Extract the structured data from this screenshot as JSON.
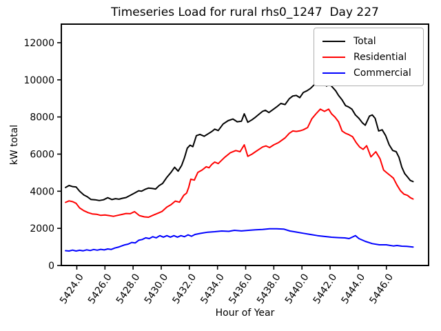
{
  "figure": {
    "title": "Timeseries Load for rural rhs0_1247  Day 227"
  },
  "chart_data": {
    "type": "line",
    "title": "Timeseries Load for rural rhs0_1247  Day 227",
    "xlabel": "Hour of Year",
    "ylabel": "kW total",
    "xlim": [
      5422.9,
      5449.0
    ],
    "ylim": [
      0,
      13000
    ],
    "xticks": [
      5424,
      5426,
      5428,
      5430,
      5432,
      5434,
      5436,
      5438,
      5440,
      5442,
      5444,
      5446
    ],
    "xtick_labels": [
      "5424.0",
      "5426.0",
      "5428.0",
      "5430.0",
      "5432.0",
      "5434.0",
      "5436.0",
      "5438.0",
      "5440.0",
      "5442.0",
      "5444.0",
      "5446.0"
    ],
    "yticks": [
      0,
      2000,
      4000,
      6000,
      8000,
      10000,
      12000
    ],
    "ytick_labels": [
      "0",
      "2000",
      "4000",
      "6000",
      "8000",
      "10000",
      "12000"
    ],
    "grid": false,
    "legend_position": "upper right",
    "series": [
      {
        "name": "Total",
        "color": "#000000",
        "x": [
          5423.2,
          5423.45,
          5423.7,
          5423.95,
          5424.2,
          5424.5,
          5424.75,
          5425.0,
          5425.3,
          5425.6,
          5425.9,
          5426.2,
          5426.5,
          5426.75,
          5427.0,
          5427.25,
          5427.5,
          5427.8,
          5428.1,
          5428.4,
          5428.6,
          5428.85,
          5429.1,
          5429.35,
          5429.6,
          5429.85,
          5430.1,
          5430.4,
          5430.7,
          5430.95,
          5431.2,
          5431.45,
          5431.65,
          5431.85,
          5432.05,
          5432.25,
          5432.5,
          5432.75,
          5433.05,
          5433.35,
          5433.6,
          5433.8,
          5434.05,
          5434.4,
          5434.75,
          5435.1,
          5435.4,
          5435.7,
          5435.9,
          5436.15,
          5436.45,
          5436.7,
          5436.95,
          5437.2,
          5437.4,
          5437.65,
          5437.95,
          5438.2,
          5438.5,
          5438.8,
          5439.1,
          5439.35,
          5439.6,
          5439.85,
          5440.1,
          5440.35,
          5440.6,
          5440.85,
          5441.1,
          5441.3,
          5441.55,
          5441.75,
          5441.95,
          5442.15,
          5442.4,
          5442.6,
          5442.85,
          5443.1,
          5443.3,
          5443.55,
          5443.8,
          5444.05,
          5444.3,
          5444.5,
          5444.8,
          5445.0,
          5445.2,
          5445.45,
          5445.7,
          5445.95,
          5446.2,
          5446.45,
          5446.7,
          5446.9,
          5447.1,
          5447.3,
          5447.5,
          5447.7,
          5447.9
        ],
        "y": [
          4200,
          4310,
          4250,
          4230,
          4000,
          3800,
          3700,
          3560,
          3540,
          3500,
          3540,
          3650,
          3550,
          3600,
          3570,
          3620,
          3660,
          3780,
          3900,
          4025,
          4000,
          4100,
          4170,
          4150,
          4120,
          4300,
          4420,
          4750,
          5020,
          5290,
          5080,
          5390,
          5800,
          6320,
          6480,
          6400,
          6995,
          7060,
          6960,
          7100,
          7220,
          7345,
          7270,
          7620,
          7800,
          7890,
          7740,
          7770,
          8170,
          7715,
          7850,
          7990,
          8150,
          8300,
          8360,
          8240,
          8400,
          8540,
          8730,
          8670,
          8980,
          9130,
          9160,
          9040,
          9320,
          9410,
          9535,
          9720,
          9900,
          9845,
          9950,
          9660,
          9780,
          9620,
          9410,
          9160,
          8920,
          8610,
          8545,
          8420,
          8110,
          7925,
          7680,
          7555,
          8050,
          8110,
          7925,
          7245,
          7310,
          6995,
          6500,
          6195,
          6130,
          5820,
          5290,
          4950,
          4770,
          4580,
          4520
        ]
      },
      {
        "name": "Residential",
        "color": "#ff0000",
        "x": [
          5423.2,
          5423.45,
          5423.7,
          5423.95,
          5424.2,
          5424.5,
          5424.8,
          5425.1,
          5425.4,
          5425.7,
          5426.0,
          5426.3,
          5426.6,
          5426.9,
          5427.2,
          5427.5,
          5427.8,
          5428.1,
          5428.45,
          5428.8,
          5429.1,
          5429.45,
          5429.75,
          5430.05,
          5430.4,
          5430.7,
          5431.0,
          5431.3,
          5431.6,
          5431.8,
          5431.95,
          5432.1,
          5432.35,
          5432.6,
          5432.9,
          5433.2,
          5433.4,
          5433.6,
          5433.8,
          5434.05,
          5434.5,
          5434.9,
          5435.3,
          5435.6,
          5435.9,
          5436.15,
          5436.45,
          5436.7,
          5437.0,
          5437.2,
          5437.45,
          5437.7,
          5438.0,
          5438.35,
          5438.8,
          5439.1,
          5439.35,
          5439.6,
          5439.85,
          5440.1,
          5440.4,
          5440.7,
          5441.0,
          5441.3,
          5441.6,
          5441.9,
          5442.1,
          5442.35,
          5442.6,
          5442.85,
          5443.1,
          5443.3,
          5443.6,
          5443.85,
          5444.1,
          5444.35,
          5444.6,
          5444.9,
          5445.25,
          5445.55,
          5445.8,
          5446.0,
          5446.3,
          5446.5,
          5446.75,
          5447.0,
          5447.25,
          5447.5,
          5447.7,
          5447.9
        ],
        "y": [
          3400,
          3480,
          3440,
          3350,
          3100,
          2950,
          2850,
          2780,
          2760,
          2700,
          2720,
          2690,
          2650,
          2700,
          2750,
          2800,
          2790,
          2900,
          2690,
          2620,
          2600,
          2720,
          2810,
          2910,
          3150,
          3280,
          3470,
          3410,
          3780,
          3900,
          4200,
          4650,
          4600,
          5015,
          5140,
          5320,
          5265,
          5450,
          5570,
          5490,
          5820,
          6070,
          6190,
          6130,
          6500,
          5880,
          6000,
          6130,
          6280,
          6380,
          6440,
          6350,
          6500,
          6625,
          6870,
          7120,
          7245,
          7220,
          7250,
          7310,
          7430,
          7900,
          8170,
          8420,
          8300,
          8420,
          8170,
          7990,
          7740,
          7245,
          7120,
          7060,
          6935,
          6625,
          6380,
          6254,
          6450,
          5850,
          6130,
          5750,
          5140,
          5015,
          4830,
          4705,
          4335,
          4025,
          3840,
          3777,
          3650,
          3580
        ]
      },
      {
        "name": "Commercial",
        "color": "#0000ff",
        "x": [
          5423.2,
          5423.45,
          5423.7,
          5423.95,
          5424.2,
          5424.45,
          5424.7,
          5424.95,
          5425.2,
          5425.45,
          5425.7,
          5425.95,
          5426.2,
          5426.45,
          5426.7,
          5427.0,
          5427.4,
          5427.65,
          5427.9,
          5428.15,
          5428.4,
          5428.65,
          5428.9,
          5429.15,
          5429.4,
          5429.65,
          5429.9,
          5430.15,
          5430.4,
          5430.65,
          5430.9,
          5431.15,
          5431.4,
          5431.65,
          5431.9,
          5432.15,
          5432.4,
          5432.8,
          5433.3,
          5433.8,
          5434.3,
          5434.8,
          5435.2,
          5435.7,
          5436.2,
          5436.7,
          5437.2,
          5437.7,
          5438.2,
          5438.7,
          5439.15,
          5439.6,
          5440.1,
          5440.6,
          5441.1,
          5441.6,
          5442.1,
          5442.6,
          5443.05,
          5443.35,
          5443.55,
          5443.8,
          5444.05,
          5444.5,
          5445.0,
          5445.5,
          5446.0,
          5446.5,
          5446.75,
          5447.1,
          5447.45,
          5447.9
        ],
        "y": [
          800,
          780,
          830,
          780,
          820,
          790,
          845,
          805,
          860,
          825,
          870,
          840,
          890,
          865,
          940,
          1000,
          1110,
          1150,
          1240,
          1215,
          1360,
          1400,
          1490,
          1450,
          1550,
          1490,
          1610,
          1525,
          1610,
          1525,
          1610,
          1525,
          1610,
          1550,
          1650,
          1575,
          1670,
          1730,
          1795,
          1820,
          1857,
          1840,
          1894,
          1860,
          1894,
          1920,
          1943,
          1975,
          1980,
          1960,
          1857,
          1800,
          1734,
          1670,
          1610,
          1565,
          1523,
          1500,
          1486,
          1450,
          1520,
          1609,
          1449,
          1300,
          1177,
          1114,
          1114,
          1052,
          1077,
          1040,
          1029,
          990
        ]
      }
    ]
  },
  "style": {
    "spine_color": "#000000",
    "legend_border_color": "#b0b0b0",
    "background": "#ffffff"
  }
}
